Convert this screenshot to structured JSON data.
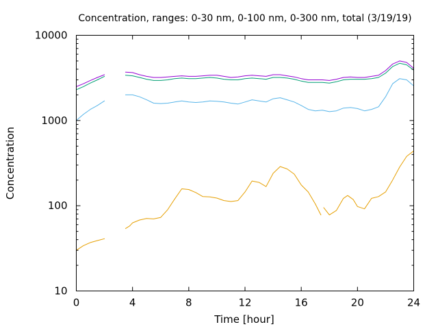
{
  "chart_data": {
    "type": "line",
    "title": "Concentration, ranges: 0-30 nm, 0-100 nm, 0-300 nm, total (3/19/19)",
    "xlabel": "Time [hour]",
    "ylabel": "Concentration",
    "xlim": [
      0,
      24
    ],
    "ylim": [
      10,
      10000
    ],
    "yscale": "log",
    "grid": false,
    "legend": "none",
    "x_ticks": [
      0,
      4,
      8,
      12,
      16,
      20,
      24
    ],
    "x_tick_labels": [
      "0",
      "4",
      "8",
      "12",
      "16",
      "20",
      "24"
    ],
    "y_ticks": [
      10,
      100,
      1000,
      10000
    ],
    "y_tick_labels": [
      "10",
      "100",
      "1000",
      "10000"
    ],
    "series": [
      {
        "color": "#e69f00",
        "segments": [
          [
            [
              0,
              30
            ],
            [
              0.5,
              34
            ],
            [
              1,
              37
            ],
            [
              1.5,
              39
            ],
            [
              2,
              41
            ]
          ],
          [
            [
              3.5,
              54
            ],
            [
              3.8,
              58
            ],
            [
              4,
              63
            ],
            [
              4.5,
              68
            ],
            [
              5,
              71
            ],
            [
              5.5,
              70
            ],
            [
              6,
              73
            ],
            [
              6.5,
              90
            ],
            [
              7,
              120
            ],
            [
              7.5,
              158
            ],
            [
              8,
              155
            ],
            [
              8.5,
              143
            ],
            [
              9,
              128
            ],
            [
              9.5,
              127
            ],
            [
              10,
              123
            ],
            [
              10.5,
              115
            ],
            [
              11,
              112
            ],
            [
              11.5,
              115
            ],
            [
              12,
              145
            ],
            [
              12.5,
              195
            ],
            [
              13,
              188
            ],
            [
              13.5,
              168
            ],
            [
              14,
              240
            ],
            [
              14.5,
              288
            ],
            [
              15,
              270
            ],
            [
              15.5,
              235
            ],
            [
              16,
              175
            ],
            [
              16.5,
              145
            ],
            [
              17,
              105
            ],
            [
              17.4,
              78
            ]
          ],
          [
            [
              17.6,
              95
            ],
            [
              18,
              78
            ],
            [
              18.5,
              88
            ],
            [
              19,
              122
            ],
            [
              19.3,
              132
            ],
            [
              19.7,
              118
            ],
            [
              20,
              98
            ],
            [
              20.5,
              92
            ],
            [
              21,
              122
            ],
            [
              21.5,
              128
            ],
            [
              22,
              145
            ],
            [
              22.5,
              200
            ],
            [
              23,
              285
            ],
            [
              23.5,
              380
            ],
            [
              24,
              440
            ]
          ]
        ]
      },
      {
        "color": "#56b4e9",
        "segments": [
          [
            [
              0,
              1000
            ],
            [
              0.5,
              1180
            ],
            [
              1,
              1350
            ],
            [
              1.5,
              1500
            ],
            [
              2,
              1700
            ]
          ],
          [
            [
              3.5,
              2000
            ],
            [
              4,
              2000
            ],
            [
              4.5,
              1900
            ],
            [
              5,
              1750
            ],
            [
              5.5,
              1600
            ],
            [
              6,
              1580
            ],
            [
              6.5,
              1600
            ],
            [
              7,
              1650
            ],
            [
              7.5,
              1700
            ],
            [
              8,
              1650
            ],
            [
              8.5,
              1630
            ],
            [
              9,
              1650
            ],
            [
              9.5,
              1700
            ],
            [
              10,
              1680
            ],
            [
              10.5,
              1650
            ],
            [
              11,
              1600
            ],
            [
              11.5,
              1560
            ],
            [
              12,
              1650
            ],
            [
              12.5,
              1750
            ],
            [
              13,
              1700
            ],
            [
              13.5,
              1650
            ],
            [
              14,
              1800
            ],
            [
              14.5,
              1850
            ],
            [
              15,
              1750
            ],
            [
              15.5,
              1650
            ],
            [
              16,
              1500
            ],
            [
              16.5,
              1350
            ],
            [
              17,
              1300
            ],
            [
              17.5,
              1320
            ],
            [
              18,
              1270
            ],
            [
              18.5,
              1300
            ],
            [
              19,
              1400
            ],
            [
              19.5,
              1420
            ],
            [
              20,
              1380
            ],
            [
              20.5,
              1300
            ],
            [
              21,
              1350
            ],
            [
              21.5,
              1450
            ],
            [
              22,
              1900
            ],
            [
              22.5,
              2700
            ],
            [
              23,
              3100
            ],
            [
              23.5,
              3000
            ],
            [
              24,
              2550
            ]
          ]
        ]
      },
      {
        "color": "#009e73",
        "segments": [
          [
            [
              0,
              2300
            ],
            [
              0.5,
              2500
            ],
            [
              1,
              2750
            ],
            [
              1.5,
              3000
            ],
            [
              2,
              3300
            ]
          ],
          [
            [
              3.5,
              3400
            ],
            [
              4,
              3350
            ],
            [
              4.5,
              3200
            ],
            [
              5,
              3050
            ],
            [
              5.5,
              2950
            ],
            [
              6,
              2950
            ],
            [
              6.5,
              3000
            ],
            [
              7,
              3100
            ],
            [
              7.5,
              3150
            ],
            [
              8,
              3100
            ],
            [
              8.5,
              3100
            ],
            [
              9,
              3150
            ],
            [
              9.5,
              3200
            ],
            [
              10,
              3150
            ],
            [
              10.5,
              3050
            ],
            [
              11,
              3000
            ],
            [
              11.5,
              3000
            ],
            [
              12,
              3100
            ],
            [
              12.5,
              3150
            ],
            [
              13,
              3100
            ],
            [
              13.5,
              3050
            ],
            [
              14,
              3200
            ],
            [
              14.5,
              3200
            ],
            [
              15,
              3150
            ],
            [
              15.5,
              3050
            ],
            [
              16,
              2900
            ],
            [
              16.5,
              2800
            ],
            [
              17,
              2800
            ],
            [
              17.5,
              2800
            ],
            [
              18,
              2750
            ],
            [
              18.5,
              2850
            ],
            [
              19,
              3000
            ],
            [
              19.5,
              3050
            ],
            [
              20,
              3050
            ],
            [
              20.5,
              3050
            ],
            [
              21,
              3100
            ],
            [
              21.5,
              3200
            ],
            [
              22,
              3600
            ],
            [
              22.5,
              4300
            ],
            [
              23,
              4700
            ],
            [
              23.5,
              4500
            ],
            [
              24,
              3900
            ]
          ]
        ]
      },
      {
        "color": "#9400d3",
        "segments": [
          [
            [
              0,
              2500
            ],
            [
              0.5,
              2700
            ],
            [
              1,
              2950
            ],
            [
              1.5,
              3200
            ],
            [
              2,
              3450
            ]
          ],
          [
            [
              3.5,
              3700
            ],
            [
              4,
              3650
            ],
            [
              4.5,
              3450
            ],
            [
              5,
              3300
            ],
            [
              5.5,
              3200
            ],
            [
              6,
              3200
            ],
            [
              6.5,
              3250
            ],
            [
              7,
              3300
            ],
            [
              7.5,
              3350
            ],
            [
              8,
              3300
            ],
            [
              8.5,
              3300
            ],
            [
              9,
              3350
            ],
            [
              9.5,
              3400
            ],
            [
              10,
              3400
            ],
            [
              10.5,
              3300
            ],
            [
              11,
              3200
            ],
            [
              11.5,
              3250
            ],
            [
              12,
              3350
            ],
            [
              12.5,
              3400
            ],
            [
              13,
              3350
            ],
            [
              13.5,
              3300
            ],
            [
              14,
              3450
            ],
            [
              14.5,
              3450
            ],
            [
              15,
              3350
            ],
            [
              15.5,
              3250
            ],
            [
              16,
              3100
            ],
            [
              16.5,
              3000
            ],
            [
              17,
              3000
            ],
            [
              17.5,
              3000
            ],
            [
              18,
              2950
            ],
            [
              18.5,
              3050
            ],
            [
              19,
              3200
            ],
            [
              19.5,
              3250
            ],
            [
              20,
              3200
            ],
            [
              20.5,
              3200
            ],
            [
              21,
              3300
            ],
            [
              21.5,
              3400
            ],
            [
              22,
              3850
            ],
            [
              22.5,
              4600
            ],
            [
              23,
              5000
            ],
            [
              23.5,
              4800
            ],
            [
              24,
              4100
            ]
          ]
        ]
      }
    ]
  }
}
